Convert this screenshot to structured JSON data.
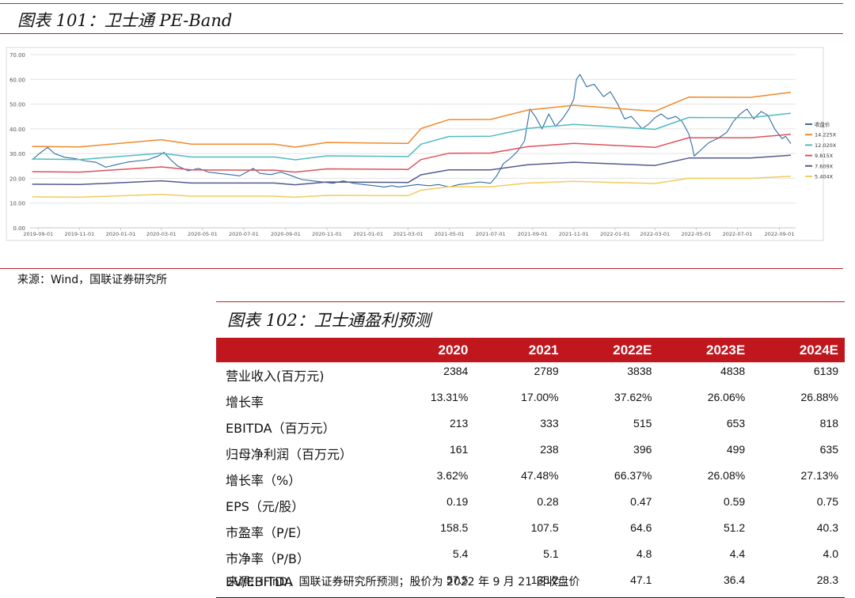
{
  "fig1": {
    "title": "图表 101：卫士通 PE-Band",
    "source": "来源：Wind，国联证券研究所"
  },
  "fig2": {
    "title": "图表 102：卫士通盈利预测",
    "source": "来源：iFinD，国联证券研究所预测；股价为 2022 年 9 月 21 日收盘价"
  },
  "table": {
    "headers": [
      "",
      "2020",
      "2021",
      "2022E",
      "2023E",
      "2024E"
    ],
    "rows": [
      {
        "label": "营业收入(百万元)",
        "values": [
          "2384",
          "2789",
          "3838",
          "4838",
          "6139"
        ]
      },
      {
        "label": "增长率",
        "values": [
          "13.31%",
          "17.00%",
          "37.62%",
          "26.06%",
          "26.88%"
        ]
      },
      {
        "label": "EBITDA（百万元）",
        "values": [
          "213",
          "333",
          "515",
          "653",
          "818"
        ]
      },
      {
        "label": "归母净利润（百万元）",
        "values": [
          "161",
          "238",
          "396",
          "499",
          "635"
        ]
      },
      {
        "label": "增长率（%）",
        "values": [
          "3.62%",
          "47.48%",
          "66.37%",
          "26.08%",
          "27.13%"
        ]
      },
      {
        "label": "EPS（元/股）",
        "values": [
          "0.19",
          "0.28",
          "0.47",
          "0.59",
          "0.75"
        ]
      },
      {
        "label": "市盈率（P/E）",
        "values": [
          "158.5",
          "107.5",
          "64.6",
          "51.2",
          "40.3"
        ]
      },
      {
        "label": "市净率（P/B）",
        "values": [
          "5.4",
          "5.1",
          "4.8",
          "4.4",
          "4.0"
        ]
      },
      {
        "label": "EV/EBITDA",
        "values": [
          "57.5",
          "135.2",
          "47.1",
          "36.4",
          "28.3"
        ]
      }
    ]
  },
  "chart_data": {
    "type": "line",
    "title": "",
    "ylim": [
      0,
      70
    ],
    "yticks": [
      "0.00",
      "10.00",
      "20.00",
      "30.00",
      "40.00",
      "50.00",
      "60.00",
      "70.00"
    ],
    "x_range": [
      "2019-08-20",
      "2022-09-25"
    ],
    "xticks": [
      "2019-09-01",
      "2019-11-01",
      "2020-01-01",
      "2020-03-01",
      "2020-05-01",
      "2020-07-01",
      "2020-09-01",
      "2020-11-01",
      "2021-01-01",
      "2021-03-01",
      "2021-05-01",
      "2021-07-01",
      "2021-09-01",
      "2021-11-01",
      "2022-01-01",
      "2022-03-01",
      "2022-05-01",
      "2022-07-01",
      "2022-09-01"
    ],
    "grid": true,
    "legend_position": "right",
    "series": [
      {
        "name": "收盘价",
        "color": "#2e6da4",
        "width": 1.1,
        "points": [
          [
            "2019-08-23",
            27.5
          ],
          [
            "2019-09-05",
            30.5
          ],
          [
            "2019-09-15",
            32.5
          ],
          [
            "2019-09-25",
            30
          ],
          [
            "2019-10-10",
            28.5
          ],
          [
            "2019-10-25",
            28
          ],
          [
            "2019-11-10",
            27
          ],
          [
            "2019-11-25",
            26.5
          ],
          [
            "2019-12-10",
            24.5
          ],
          [
            "2019-12-25",
            25.5
          ],
          [
            "2020-01-10",
            26.5
          ],
          [
            "2020-01-25",
            27
          ],
          [
            "2020-02-10",
            27.5
          ],
          [
            "2020-02-25",
            29
          ],
          [
            "2020-03-05",
            30.5
          ],
          [
            "2020-03-15",
            27.5
          ],
          [
            "2020-03-25",
            25
          ],
          [
            "2020-04-10",
            23
          ],
          [
            "2020-04-25",
            24
          ],
          [
            "2020-05-10",
            22.5
          ],
          [
            "2020-05-25",
            22
          ],
          [
            "2020-06-10",
            21.5
          ],
          [
            "2020-06-25",
            21
          ],
          [
            "2020-07-05",
            22.5
          ],
          [
            "2020-07-15",
            24
          ],
          [
            "2020-07-25",
            22
          ],
          [
            "2020-08-10",
            21.5
          ],
          [
            "2020-08-25",
            22.5
          ],
          [
            "2020-09-10",
            21
          ],
          [
            "2020-09-25",
            19.5
          ],
          [
            "2020-10-10",
            19
          ],
          [
            "2020-10-25",
            18.5
          ],
          [
            "2020-11-10",
            18
          ],
          [
            "2020-11-25",
            19
          ],
          [
            "2020-12-10",
            18
          ],
          [
            "2020-12-25",
            17.5
          ],
          [
            "2021-01-10",
            17
          ],
          [
            "2021-01-25",
            16.5
          ],
          [
            "2021-02-05",
            17
          ],
          [
            "2021-02-15",
            16.5
          ],
          [
            "2021-03-01",
            17
          ],
          [
            "2021-03-15",
            17.5
          ],
          [
            "2021-04-01",
            17
          ],
          [
            "2021-04-15",
            17.5
          ],
          [
            "2021-05-01",
            16.5
          ],
          [
            "2021-05-15",
            17.5
          ],
          [
            "2021-06-01",
            18
          ],
          [
            "2021-06-15",
            18.5
          ],
          [
            "2021-07-01",
            18
          ],
          [
            "2021-07-10",
            21
          ],
          [
            "2021-07-20",
            26
          ],
          [
            "2021-07-30",
            28
          ],
          [
            "2021-08-10",
            31
          ],
          [
            "2021-08-20",
            35
          ],
          [
            "2021-08-25",
            43
          ],
          [
            "2021-08-28",
            48
          ],
          [
            "2021-09-05",
            45
          ],
          [
            "2021-09-15",
            40
          ],
          [
            "2021-09-25",
            46
          ],
          [
            "2021-10-05",
            41
          ],
          [
            "2021-10-15",
            44
          ],
          [
            "2021-10-25",
            48
          ],
          [
            "2021-11-01",
            52
          ],
          [
            "2021-11-05",
            60
          ],
          [
            "2021-11-10",
            62
          ],
          [
            "2021-11-20",
            57
          ],
          [
            "2021-12-01",
            58
          ],
          [
            "2021-12-15",
            53
          ],
          [
            "2021-12-25",
            55
          ],
          [
            "2022-01-05",
            50
          ],
          [
            "2022-01-15",
            44
          ],
          [
            "2022-01-25",
            45
          ],
          [
            "2022-02-10",
            40
          ],
          [
            "2022-02-20",
            42
          ],
          [
            "2022-03-01",
            44.5
          ],
          [
            "2022-03-10",
            46
          ],
          [
            "2022-03-20",
            44
          ],
          [
            "2022-04-01",
            45
          ],
          [
            "2022-04-10",
            43
          ],
          [
            "2022-04-20",
            38
          ],
          [
            "2022-04-25",
            33
          ],
          [
            "2022-04-28",
            29
          ],
          [
            "2022-05-10",
            32
          ],
          [
            "2022-05-20",
            34.5
          ],
          [
            "2022-06-01",
            36
          ],
          [
            "2022-06-15",
            38.5
          ],
          [
            "2022-06-25",
            43
          ],
          [
            "2022-07-05",
            46
          ],
          [
            "2022-07-15",
            48
          ],
          [
            "2022-07-25",
            44
          ],
          [
            "2022-08-05",
            47
          ],
          [
            "2022-08-15",
            45.5
          ],
          [
            "2022-08-25",
            40
          ],
          [
            "2022-09-05",
            36
          ],
          [
            "2022-09-10",
            37
          ],
          [
            "2022-09-18",
            34
          ]
        ]
      },
      {
        "name": "14.225X",
        "color": "#f0892b",
        "width": 1.5,
        "points": [
          [
            "2019-08-23",
            32.9
          ],
          [
            "2019-11-01",
            32.7
          ],
          [
            "2020-03-01",
            35.6
          ],
          [
            "2020-04-15",
            33.8
          ],
          [
            "2020-08-15",
            33.8
          ],
          [
            "2020-09-15",
            32.6
          ],
          [
            "2020-11-01",
            34.5
          ],
          [
            "2021-03-01",
            34.1
          ],
          [
            "2021-03-20",
            40.1
          ],
          [
            "2021-04-30",
            43.7
          ],
          [
            "2021-07-01",
            43.8
          ],
          [
            "2021-08-25",
            47.6
          ],
          [
            "2021-11-01",
            49.5
          ],
          [
            "2022-03-01",
            47.1
          ],
          [
            "2022-04-20",
            52.8
          ],
          [
            "2022-07-20",
            52.7
          ],
          [
            "2022-09-18",
            54.8
          ]
        ]
      },
      {
        "name": "12.020X",
        "color": "#4fbbc0",
        "width": 1.5,
        "points": [
          [
            "2019-08-23",
            27.8
          ],
          [
            "2019-11-01",
            27.6
          ],
          [
            "2020-03-01",
            30.1
          ],
          [
            "2020-04-15",
            28.6
          ],
          [
            "2020-08-15",
            28.6
          ],
          [
            "2020-09-15",
            27.5
          ],
          [
            "2020-11-01",
            29.1
          ],
          [
            "2021-03-01",
            28.8
          ],
          [
            "2021-03-20",
            33.8
          ],
          [
            "2021-04-30",
            36.9
          ],
          [
            "2021-07-01",
            37.0
          ],
          [
            "2021-08-25",
            40.2
          ],
          [
            "2021-11-01",
            41.8
          ],
          [
            "2022-03-01",
            39.8
          ],
          [
            "2022-04-20",
            44.6
          ],
          [
            "2022-07-20",
            44.5
          ],
          [
            "2022-09-18",
            46.3
          ]
        ]
      },
      {
        "name": "9.815X",
        "color": "#e0505a",
        "width": 1.5,
        "points": [
          [
            "2019-08-23",
            22.7
          ],
          [
            "2019-11-01",
            22.5
          ],
          [
            "2020-03-01",
            24.6
          ],
          [
            "2020-04-15",
            23.4
          ],
          [
            "2020-08-15",
            23.3
          ],
          [
            "2020-09-15",
            22.5
          ],
          [
            "2020-11-01",
            23.8
          ],
          [
            "2021-03-01",
            23.6
          ],
          [
            "2021-03-20",
            27.6
          ],
          [
            "2021-04-30",
            30.1
          ],
          [
            "2021-07-01",
            30.2
          ],
          [
            "2021-08-25",
            32.8
          ],
          [
            "2021-11-01",
            34.1
          ],
          [
            "2022-03-01",
            32.5
          ],
          [
            "2022-04-20",
            36.4
          ],
          [
            "2022-07-20",
            36.4
          ],
          [
            "2022-09-18",
            37.8
          ]
        ]
      },
      {
        "name": "7.609X",
        "color": "#535a8e",
        "width": 1.5,
        "points": [
          [
            "2019-08-23",
            17.6
          ],
          [
            "2019-11-01",
            17.5
          ],
          [
            "2020-03-01",
            19.0
          ],
          [
            "2020-04-15",
            18.1
          ],
          [
            "2020-08-15",
            18.1
          ],
          [
            "2020-09-15",
            17.4
          ],
          [
            "2020-11-01",
            18.5
          ],
          [
            "2021-03-01",
            18.3
          ],
          [
            "2021-03-20",
            21.4
          ],
          [
            "2021-04-30",
            23.4
          ],
          [
            "2021-07-01",
            23.4
          ],
          [
            "2021-08-25",
            25.5
          ],
          [
            "2021-11-01",
            26.5
          ],
          [
            "2022-03-01",
            25.2
          ],
          [
            "2022-04-20",
            28.2
          ],
          [
            "2022-07-20",
            28.2
          ],
          [
            "2022-09-18",
            29.3
          ]
        ]
      },
      {
        "name": "5.404X",
        "color": "#f2cc5c",
        "width": 1.5,
        "points": [
          [
            "2019-08-23",
            12.5
          ],
          [
            "2019-11-01",
            12.4
          ],
          [
            "2020-03-01",
            13.5
          ],
          [
            "2020-04-15",
            12.8
          ],
          [
            "2020-08-15",
            12.8
          ],
          [
            "2020-09-15",
            12.4
          ],
          [
            "2020-11-01",
            13.1
          ],
          [
            "2021-03-01",
            13.0
          ],
          [
            "2021-03-20",
            15.2
          ],
          [
            "2021-04-30",
            16.6
          ],
          [
            "2021-07-01",
            16.6
          ],
          [
            "2021-08-25",
            18.1
          ],
          [
            "2021-11-01",
            18.8
          ],
          [
            "2022-03-01",
            17.9
          ],
          [
            "2022-04-20",
            20.0
          ],
          [
            "2022-07-20",
            20.0
          ],
          [
            "2022-09-18",
            20.8
          ]
        ]
      }
    ]
  }
}
